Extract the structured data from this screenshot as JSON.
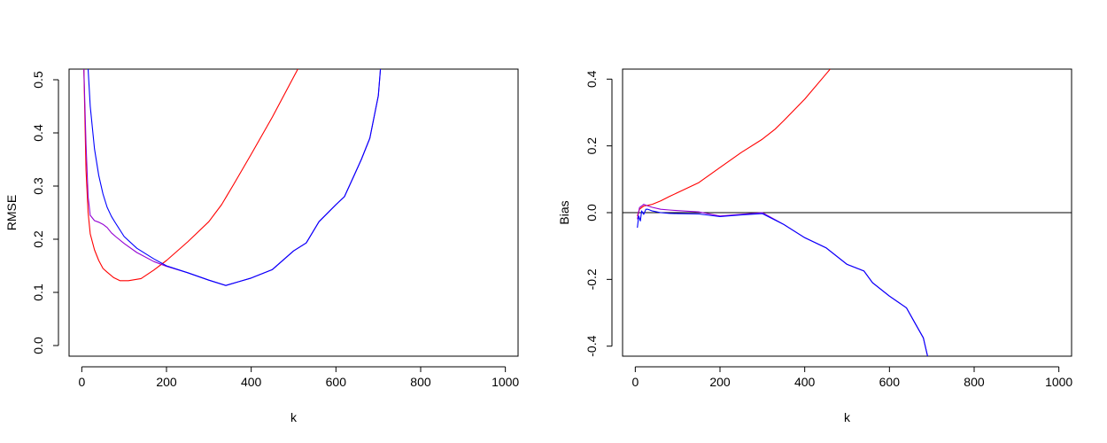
{
  "chart_data": [
    {
      "type": "line",
      "xlabel": "k",
      "ylabel": "RMSE",
      "xlim": [
        -30,
        1030
      ],
      "ylim": [
        -0.02,
        0.52
      ],
      "xticks": [
        0,
        200,
        400,
        600,
        800,
        1000
      ],
      "yticks": [
        0.0,
        0.1,
        0.2,
        0.3,
        0.4,
        0.5
      ],
      "xtick_labels": [
        "0",
        "200",
        "400",
        "600",
        "800",
        "1000"
      ],
      "ytick_labels": [
        "0.0",
        "0.1",
        "0.2",
        "0.3",
        "0.4",
        "0.5"
      ],
      "grid": false,
      "series": [
        {
          "color": "#ff0000",
          "x": [
            5,
            10,
            15,
            20,
            30,
            40,
            50,
            60,
            75,
            90,
            110,
            140,
            170,
            200,
            250,
            300,
            330,
            360,
            400,
            450,
            500,
            510
          ],
          "y": [
            0.52,
            0.33,
            0.25,
            0.21,
            0.18,
            0.16,
            0.145,
            0.138,
            0.128,
            0.122,
            0.122,
            0.126,
            0.142,
            0.16,
            0.195,
            0.233,
            0.265,
            0.305,
            0.36,
            0.43,
            0.505,
            0.52
          ]
        },
        {
          "color": "#9400d3",
          "x": [
            5,
            10,
            15,
            20,
            30,
            40,
            50,
            60,
            70,
            80,
            100,
            130,
            170,
            200,
            250,
            300,
            340,
            370,
            400,
            450,
            500,
            530,
            560,
            600,
            620,
            640,
            660,
            680,
            700,
            705
          ],
          "y": [
            0.52,
            0.38,
            0.28,
            0.245,
            0.235,
            0.232,
            0.228,
            0.222,
            0.212,
            0.205,
            0.192,
            0.175,
            0.158,
            0.149,
            0.137,
            0.123,
            0.113,
            0.12,
            0.127,
            0.143,
            0.178,
            0.193,
            0.233,
            0.265,
            0.28,
            0.315,
            0.35,
            0.39,
            0.47,
            0.52
          ]
        },
        {
          "color": "#0000ff",
          "x": [
            15,
            20,
            25,
            30,
            40,
            50,
            60,
            70,
            80,
            100,
            130,
            170,
            200,
            250,
            300,
            340,
            370,
            400,
            450,
            500,
            530,
            560,
            600,
            620,
            640,
            660,
            680,
            700,
            705
          ],
          "y": [
            0.52,
            0.45,
            0.41,
            0.37,
            0.32,
            0.285,
            0.26,
            0.243,
            0.23,
            0.205,
            0.183,
            0.163,
            0.15,
            0.137,
            0.123,
            0.113,
            0.12,
            0.127,
            0.143,
            0.178,
            0.193,
            0.233,
            0.265,
            0.28,
            0.315,
            0.35,
            0.39,
            0.47,
            0.52
          ]
        }
      ]
    },
    {
      "type": "line",
      "xlabel": "k",
      "ylabel": "Bias",
      "xlim": [
        -30,
        1030
      ],
      "ylim": [
        -0.43,
        0.43
      ],
      "xticks": [
        0,
        200,
        400,
        600,
        800,
        1000
      ],
      "yticks": [
        -0.4,
        -0.2,
        0.0,
        0.2,
        0.4
      ],
      "xtick_labels": [
        "0",
        "200",
        "400",
        "600",
        "800",
        "1000"
      ],
      "ytick_labels": [
        "-0.4",
        "-0.2",
        "0.0",
        "0.2",
        "0.4"
      ],
      "grid": false,
      "hline": 0,
      "series": [
        {
          "color": "#ff0000",
          "x": [
            5,
            10,
            15,
            20,
            30,
            40,
            60,
            80,
            100,
            150,
            200,
            250,
            300,
            330,
            350,
            400,
            450,
            460
          ],
          "y": [
            -0.01,
            0.01,
            0.015,
            0.02,
            0.022,
            0.025,
            0.035,
            0.048,
            0.06,
            0.09,
            0.135,
            0.18,
            0.22,
            0.25,
            0.275,
            0.34,
            0.415,
            0.43
          ]
        },
        {
          "color": "#9400d3",
          "x": [
            5,
            10,
            15,
            20,
            30,
            40,
            60,
            80,
            100,
            150,
            200,
            250,
            300,
            350,
            400,
            450,
            500,
            540,
            560,
            600,
            640,
            660,
            680,
            690
          ],
          "y": [
            -0.02,
            0.015,
            0.02,
            0.025,
            0.02,
            0.016,
            0.01,
            0.008,
            0.006,
            0.002,
            -0.01,
            -0.005,
            0.0,
            -0.035,
            -0.075,
            -0.105,
            -0.155,
            -0.175,
            -0.21,
            -0.25,
            -0.285,
            -0.33,
            -0.375,
            -0.43
          ]
        },
        {
          "color": "#0000ff",
          "x": [
            5,
            8,
            12,
            15,
            20,
            25,
            30,
            40,
            60,
            80,
            100,
            150,
            200,
            250,
            300,
            350,
            400,
            450,
            500,
            540,
            560,
            600,
            640,
            660,
            680,
            690
          ],
          "y": [
            -0.045,
            -0.01,
            -0.025,
            0.005,
            -0.005,
            0.01,
            0.01,
            0.005,
            0.0,
            -0.002,
            -0.003,
            -0.004,
            -0.012,
            -0.007,
            -0.003,
            -0.035,
            -0.075,
            -0.105,
            -0.155,
            -0.175,
            -0.21,
            -0.25,
            -0.285,
            -0.33,
            -0.375,
            -0.43
          ]
        }
      ]
    }
  ]
}
